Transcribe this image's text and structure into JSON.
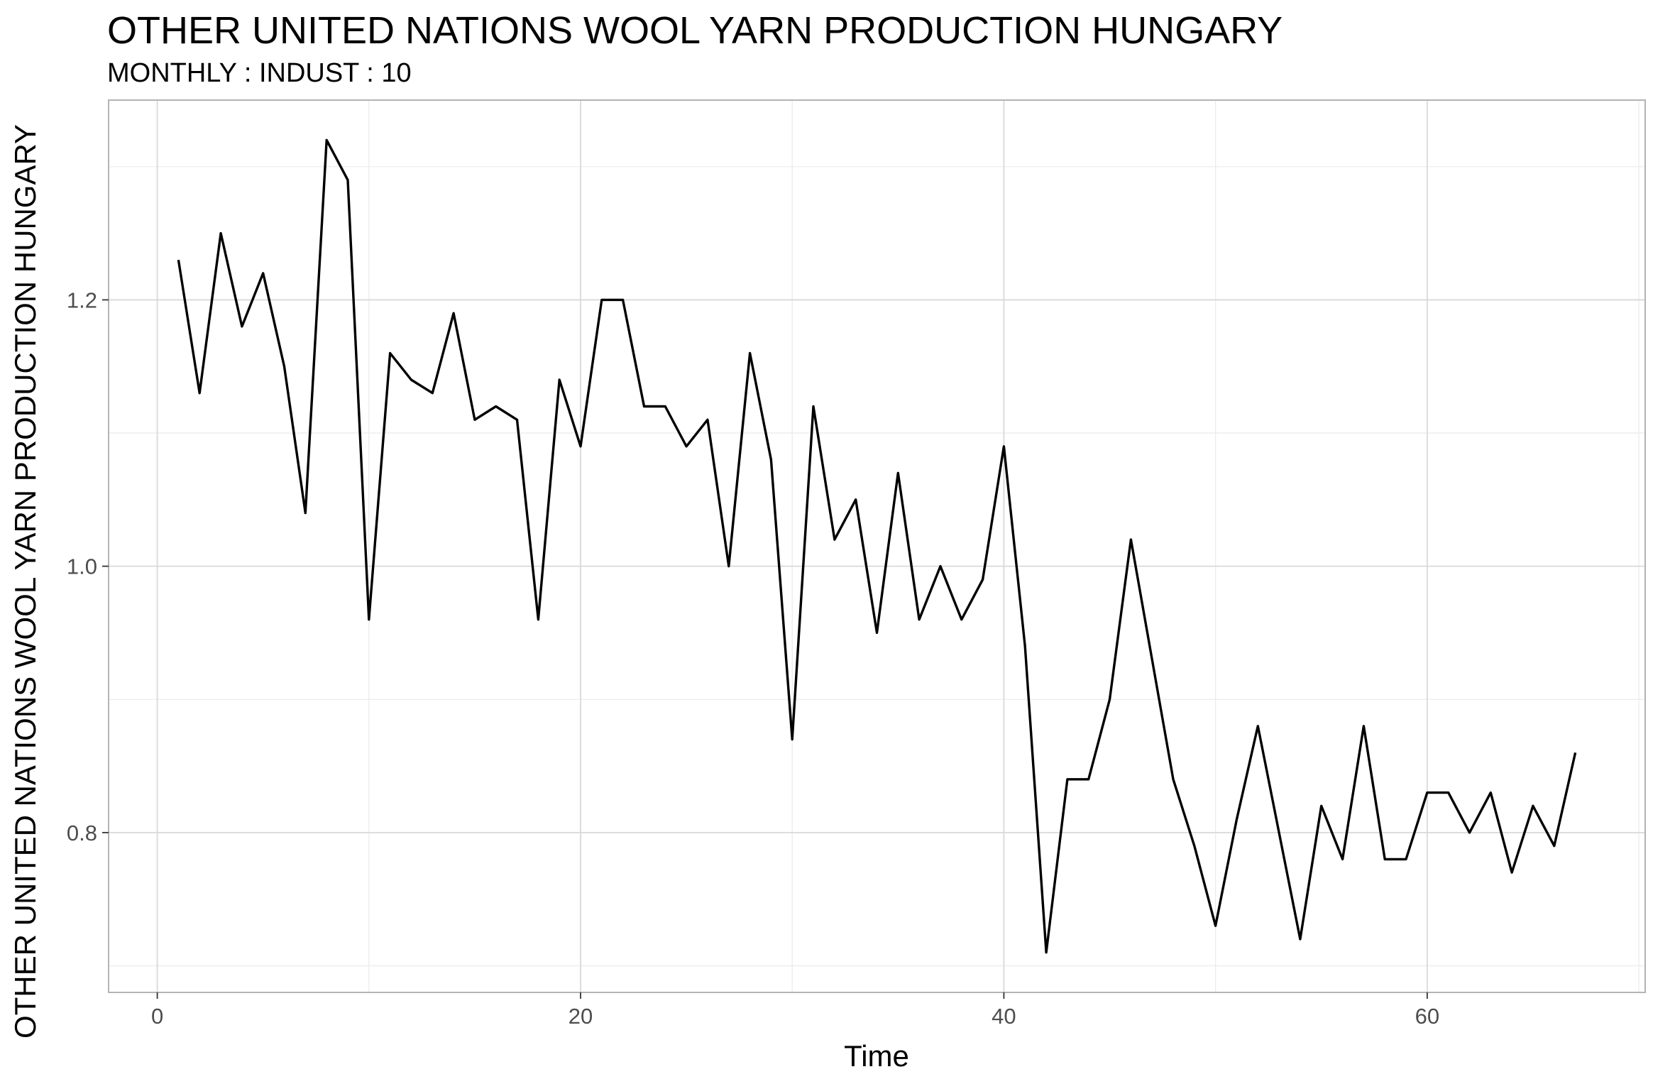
{
  "chart_data": {
    "type": "line",
    "title": "OTHER UNITED NATIONS WOOL YARN PRODUCTION HUNGARY",
    "subtitle": "MONTHLY : INDUST : 10",
    "xlabel": "Time",
    "ylabel": "OTHER UNITED NATIONS WOOL YARN PRODUCTION HUNGARY",
    "xlim": [
      -2.3,
      70.3
    ],
    "ylim": [
      0.68,
      1.35
    ],
    "x_ticks": [
      0,
      20,
      40,
      60
    ],
    "y_ticks": [
      0.8,
      1.0,
      1.2
    ],
    "y_tick_labels": [
      "0.8",
      "1.0",
      "1.2"
    ],
    "grid": true,
    "line_color": "#000000",
    "x": [
      1,
      2,
      3,
      4,
      5,
      6,
      7,
      8,
      9,
      10,
      11,
      12,
      13,
      14,
      15,
      16,
      17,
      18,
      19,
      20,
      21,
      22,
      23,
      24,
      25,
      26,
      27,
      28,
      29,
      30,
      31,
      32,
      33,
      34,
      35,
      36,
      37,
      38,
      39,
      40,
      41,
      42,
      43,
      44,
      45,
      46,
      47,
      48,
      49,
      50,
      51,
      52,
      53,
      54,
      55,
      56,
      57,
      58,
      59,
      60,
      61,
      62,
      63,
      64,
      65,
      66,
      67
    ],
    "values": [
      1.23,
      1.13,
      1.25,
      1.18,
      1.22,
      1.15,
      1.04,
      1.32,
      1.29,
      0.96,
      1.16,
      1.14,
      1.13,
      1.19,
      1.11,
      1.12,
      1.11,
      0.96,
      1.14,
      1.09,
      1.2,
      1.2,
      1.12,
      1.12,
      1.09,
      1.11,
      1.0,
      1.16,
      1.08,
      0.87,
      1.12,
      1.02,
      1.05,
      0.95,
      1.07,
      0.96,
      1.0,
      0.96,
      0.99,
      1.09,
      0.94,
      0.71,
      0.84,
      0.84,
      0.9,
      1.02,
      0.93,
      0.84,
      0.79,
      0.73,
      0.81,
      0.88,
      0.8,
      0.72,
      0.82,
      0.78,
      0.88,
      0.78,
      0.78,
      0.83,
      0.83,
      0.8,
      0.83,
      0.77,
      0.82,
      0.79,
      0.86
    ]
  }
}
